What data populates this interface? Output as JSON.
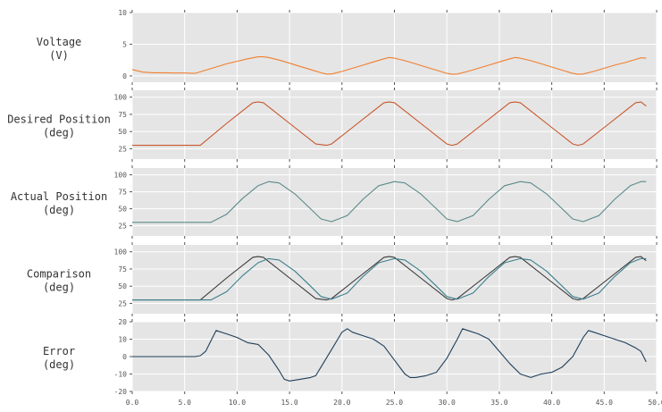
{
  "chart_data": {
    "type": "line",
    "x_axis": {
      "range": [
        0.0,
        50.0
      ],
      "ticks": [
        "0.0",
        "5.0",
        "10.0",
        "15.0",
        "20.0",
        "25.0",
        "30.0",
        "35.0",
        "40.0",
        "45.0",
        "50.0"
      ]
    },
    "grid": true,
    "colors": {
      "voltage": "#f07f2f",
      "desired": "#c9572d",
      "actual": "#5b8a8a",
      "comparison_desired": "#3a3a3a",
      "comparison_actual": "#3a7f8e",
      "error": "#1f3f5a",
      "panel_background": "#e5e5e5"
    },
    "panels": [
      {
        "ylabel": [
          "Voltage",
          "(V)"
        ],
        "ylim": [
          -1,
          10
        ],
        "yticks": [
          0,
          5,
          10
        ],
        "series": [
          {
            "color_key": "voltage",
            "x": [
              0,
              1,
              2,
              3,
              4,
              5,
              6,
              7,
              8,
              9,
              10,
              11,
              12,
              12.5,
              13,
              14,
              15,
              16,
              17,
              18,
              18.5,
              19,
              20,
              21,
              22,
              23,
              24,
              24.5,
              25,
              26,
              27,
              28,
              29,
              30,
              30.5,
              31,
              32,
              33,
              34,
              35,
              36,
              36.5,
              37,
              38,
              39,
              40,
              41,
              42,
              42.5,
              43,
              44,
              45,
              46,
              47,
              48,
              48.5,
              49
            ],
            "y": [
              1.0,
              0.6,
              0.5,
              0.5,
              0.45,
              0.45,
              0.4,
              0.9,
              1.4,
              1.9,
              2.3,
              2.7,
              3.0,
              3.0,
              2.9,
              2.5,
              2.0,
              1.5,
              1.0,
              0.5,
              0.3,
              0.3,
              0.7,
              1.2,
              1.7,
              2.2,
              2.7,
              2.9,
              2.8,
              2.4,
              1.9,
              1.4,
              0.9,
              0.4,
              0.25,
              0.3,
              0.7,
              1.2,
              1.7,
              2.2,
              2.7,
              2.9,
              2.8,
              2.4,
              1.9,
              1.4,
              0.9,
              0.4,
              0.25,
              0.3,
              0.7,
              1.2,
              1.7,
              2.1,
              2.6,
              2.85,
              2.8
            ]
          }
        ]
      },
      {
        "ylabel": [
          "Desired Position",
          "(deg)"
        ],
        "ylim": [
          10,
          110
        ],
        "yticks": [
          25,
          50,
          75,
          100
        ],
        "series": [
          {
            "color_key": "desired",
            "x": [
              0,
              6.5,
              9,
              11.5,
              12,
              12.5,
              15,
              17.5,
              18.5,
              19,
              21.5,
              24,
              24.5,
              25,
              27.5,
              30,
              30.5,
              31,
              33.5,
              36,
              36.5,
              37,
              39.5,
              42,
              42.5,
              43,
              45.5,
              48,
              48.5,
              49
            ],
            "y": [
              30,
              30,
              62,
              92,
              93,
              92,
              62,
              32,
              30,
              32,
              62,
              92,
              93,
              92,
              62,
              32,
              30,
              32,
              62,
              92,
              93,
              92,
              62,
              32,
              30,
              32,
              62,
              92,
              93,
              87
            ]
          }
        ]
      },
      {
        "ylabel": [
          "Actual Position",
          "(deg)"
        ],
        "ylim": [
          10,
          110
        ],
        "yticks": [
          25,
          50,
          75,
          100
        ],
        "series": [
          {
            "color_key": "actual",
            "x": [
              0,
              6,
              7.5,
              9,
              10.5,
              12,
              13,
              14,
              15.5,
              17,
              18,
              19,
              20.5,
              22,
              23.5,
              25,
              26,
              27.5,
              29,
              30,
              31,
              32.5,
              34,
              35.5,
              37,
              38,
              39.5,
              41,
              42,
              43,
              44.5,
              46,
              47.5,
              48.5,
              49
            ],
            "y": [
              30,
              30,
              30,
              42,
              65,
              84,
              90,
              88,
              72,
              50,
              35,
              31,
              40,
              64,
              84,
              90,
              88,
              72,
              50,
              35,
              31,
              40,
              64,
              84,
              90,
              88,
              72,
              50,
              35,
              31,
              40,
              64,
              84,
              90,
              90
            ]
          }
        ]
      },
      {
        "ylabel": [
          "Comparison",
          "(deg)"
        ],
        "ylim": [
          10,
          110
        ],
        "yticks": [
          25,
          50,
          75,
          100
        ],
        "series": [
          {
            "color_key": "comparison_desired",
            "x": [
              0,
              6.5,
              9,
              11.5,
              12,
              12.5,
              15,
              17.5,
              18.5,
              19,
              21.5,
              24,
              24.5,
              25,
              27.5,
              30,
              30.5,
              31,
              33.5,
              36,
              36.5,
              37,
              39.5,
              42,
              42.5,
              43,
              45.5,
              48,
              48.5,
              49
            ],
            "y": [
              30,
              30,
              62,
              92,
              93,
              92,
              62,
              32,
              30,
              32,
              62,
              92,
              93,
              92,
              62,
              32,
              30,
              32,
              62,
              92,
              93,
              92,
              62,
              32,
              30,
              32,
              62,
              92,
              93,
              87
            ]
          },
          {
            "color_key": "comparison_actual",
            "x": [
              0,
              6,
              7.5,
              9,
              10.5,
              12,
              13,
              14,
              15.5,
              17,
              18,
              19,
              20.5,
              22,
              23.5,
              25,
              26,
              27.5,
              29,
              30,
              31,
              32.5,
              34,
              35.5,
              37,
              38,
              39.5,
              41,
              42,
              43,
              44.5,
              46,
              47.5,
              48.5,
              49
            ],
            "y": [
              30,
              30,
              30,
              42,
              65,
              84,
              90,
              88,
              72,
              50,
              35,
              31,
              40,
              64,
              84,
              90,
              88,
              72,
              50,
              35,
              31,
              40,
              64,
              84,
              90,
              88,
              72,
              50,
              35,
              31,
              40,
              64,
              84,
              90,
              90
            ]
          }
        ]
      },
      {
        "ylabel": [
          "Error",
          "(deg)"
        ],
        "ylim": [
          -20,
          20
        ],
        "yticks": [
          -20,
          -10,
          0,
          10,
          20
        ],
        "series": [
          {
            "color_key": "error",
            "x": [
              0,
              2,
              4,
              6,
              6.5,
              7,
              7.5,
              8,
              9,
              10,
              11,
              12,
              13,
              14,
              14.5,
              15,
              16,
              17,
              17.5,
              18,
              19,
              20,
              20.5,
              21,
              22,
              23,
              24,
              25,
              26,
              26.5,
              27,
              28,
              29,
              30,
              31,
              31.5,
              32,
              33,
              34,
              35,
              36,
              37,
              38,
              38.5,
              39,
              40,
              41,
              42,
              43,
              43.5,
              44,
              45,
              46,
              47,
              48,
              48.5,
              49
            ],
            "y": [
              0,
              0,
              0,
              0,
              0.5,
              3,
              9,
              15,
              13,
              11,
              8,
              7,
              1,
              -8,
              -13,
              -14,
              -13,
              -12,
              -11,
              -6,
              4,
              14,
              16,
              14,
              12,
              10,
              6,
              -2,
              -10,
              -12,
              -12,
              -11,
              -9,
              -1,
              10,
              16,
              15,
              13,
              10,
              3,
              -4,
              -10,
              -12,
              -11,
              -10,
              -9,
              -6,
              0,
              11,
              15,
              14,
              12,
              10,
              8,
              5,
              3,
              -3
            ]
          }
        ]
      }
    ]
  }
}
